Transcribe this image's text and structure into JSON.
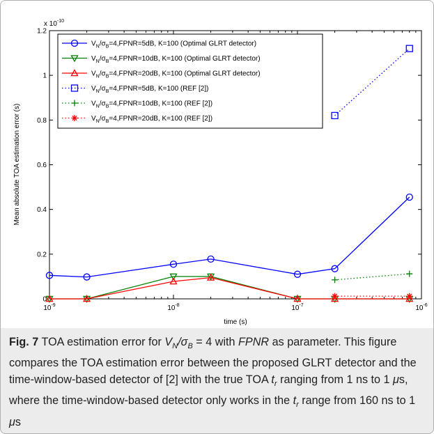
{
  "chart_data": {
    "type": "line",
    "xscale": "log",
    "xlim": [
      1e-09,
      1e-06
    ],
    "ylim": [
      0,
      1.2e-10
    ],
    "y_multiplier_label": "x 10",
    "y_multiplier_exp": "-10",
    "xlabel": "time (s)",
    "ylabel": "Mean absolute TOA estimation error (s)",
    "x_ticks": [
      {
        "value": 1e-09,
        "base": "10",
        "exp": "-9"
      },
      {
        "value": 1e-08,
        "base": "10",
        "exp": "-8"
      },
      {
        "value": 1e-07,
        "base": "10",
        "exp": "-7"
      },
      {
        "value": 1e-06,
        "base": "10",
        "exp": "-6"
      }
    ],
    "y_ticks": [
      {
        "value": 0,
        "label": "0"
      },
      {
        "value": 2e-11,
        "label": "0.2"
      },
      {
        "value": 4e-11,
        "label": "0.4"
      },
      {
        "value": 6e-11,
        "label": "0.6"
      },
      {
        "value": 8e-11,
        "label": "0.8"
      },
      {
        "value": 1e-10,
        "label": "1"
      },
      {
        "value": 1.2e-10,
        "label": "1.2"
      }
    ],
    "grid": false,
    "legend_position": "top-left",
    "series": [
      {
        "id": "s1",
        "name": "V_N/σ_B=4,FPNR=5dB, K=100 (Optimal GLRT detector)",
        "color": "#0000ff",
        "line": "solid",
        "marker": "circle",
        "x": [
          1e-09,
          2e-09,
          1e-08,
          2e-08,
          1e-07,
          2e-07,
          8e-07
        ],
        "y": [
          1.05e-11,
          9.8e-12,
          1.55e-11,
          1.78e-11,
          1.1e-11,
          1.35e-11,
          4.55e-11
        ]
      },
      {
        "id": "s2",
        "name": "V_N/σ_B=4,FPNR=10dB, K=100 (Optimal GLRT detector)",
        "color": "#008000",
        "line": "solid",
        "marker": "triangle-down",
        "x": [
          1e-09,
          2e-09,
          1e-08,
          2e-08,
          1e-07,
          2e-07,
          8e-07
        ],
        "y": [
          0,
          0,
          1e-11,
          1e-11,
          0,
          0,
          0
        ]
      },
      {
        "id": "s3",
        "name": "V_N/σ_B=4,FPNR=20dB, K=100 (Optimal GLRT detector)",
        "color": "#ff0000",
        "line": "solid",
        "marker": "triangle-up",
        "x": [
          1e-09,
          2e-09,
          1e-08,
          2e-08,
          1e-07,
          2e-07,
          8e-07
        ],
        "y": [
          0,
          0,
          7.8e-12,
          9.5e-12,
          0,
          0,
          0
        ]
      },
      {
        "id": "s4",
        "name": "V_N/σ_B=4,FPNR=5dB, K=100 (REF [2])",
        "color": "#0000ff",
        "line": "dotted",
        "marker": "square",
        "x": [
          2e-07,
          8e-07
        ],
        "y": [
          8.2e-11,
          1.12e-10
        ]
      },
      {
        "id": "s5",
        "name": "V_N/σ_B=4,FPNR=10dB, K=100 (REF [2])",
        "color": "#008000",
        "line": "dotted",
        "marker": "plus",
        "x": [
          2e-07,
          8e-07
        ],
        "y": [
          8.5e-12,
          1.12e-11
        ]
      },
      {
        "id": "s6",
        "name": "V_N/σ_B=4,FPNR=20dB, K=100 (REF [2])",
        "color": "#ff0000",
        "line": "dotted",
        "marker": "asterisk",
        "x": [
          2e-07,
          8e-07
        ],
        "y": [
          1.2e-12,
          1.2e-12
        ]
      }
    ],
    "legend": [
      {
        "label_pre": "=4,FPNR=5dB, K=100 (Optimal GLRT detector)",
        "series": "s1"
      },
      {
        "label_pre": "=4,FPNR=10dB, K=100 (Optimal GLRT detector)",
        "series": "s2"
      },
      {
        "label_pre": "=4,FPNR=20dB, K=100 (Optimal GLRT detector)",
        "series": "s3"
      },
      {
        "label_pre": "=4,FPNR=5dB, K=100 (REF [2])",
        "series": "s4"
      },
      {
        "label_pre": "=4,FPNR=10dB, K=100 (REF [2])",
        "series": "s5"
      },
      {
        "label_pre": "=4,FPNR=20dB, K=100 (REF [2])",
        "series": "s6"
      }
    ]
  },
  "caption": {
    "label": "Fig. 7",
    "text_1": " TOA estimation error for ",
    "math_1": "V",
    "math_1_sub": "N",
    "math_1_mid": "/σ",
    "math_1_sub2": "B",
    "math_1_end": " = 4",
    "text_2": " with ",
    "italic_1": "FPNR",
    "text_3": " as parameter. This figure compares the TOA estimation error between the proposed GLRT detector and the time-window-based detector of [2] with the true TOA ",
    "math_2": "t",
    "math_2_sub": "r",
    "text_4": " ranging from 1 ns to 1 ",
    "mu_1": "μ",
    "text_5": "s, where the time-window-based detector only works in the ",
    "math_3": "t",
    "math_3_sub": "r",
    "text_6": " range from 160 ns to 1 ",
    "mu_2": "μ",
    "text_7": "s"
  }
}
